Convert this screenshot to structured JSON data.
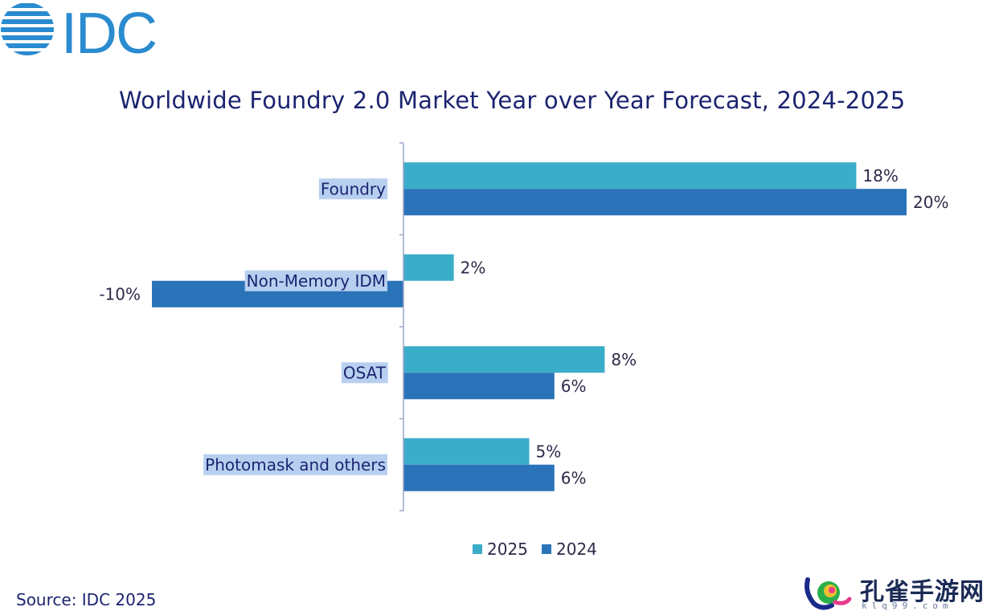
{
  "logo": {
    "text": "IDC",
    "color": "#2a8bd0"
  },
  "chart_data": {
    "type": "bar",
    "orientation": "horizontal",
    "title": "Worldwide Foundry 2.0 Market Year over Year Forecast, 2024-2025",
    "categories": [
      "Foundry",
      "Non-Memory IDM",
      "OSAT",
      "Photomask and others"
    ],
    "series": [
      {
        "name": "2025",
        "color": "#3aadc9",
        "values": [
          18,
          2,
          8,
          5
        ],
        "labels": [
          "18%",
          "2%",
          "8%",
          "5%"
        ]
      },
      {
        "name": "2024",
        "color": "#2a73b8",
        "values": [
          20,
          -10,
          6,
          6
        ],
        "labels": [
          "20%",
          "-10%",
          "6%",
          "6%"
        ]
      }
    ],
    "xlim": [
      -10,
      20
    ],
    "grid": false,
    "legend_position": "bottom"
  },
  "source": "Source: IDC 2025",
  "watermark": {
    "text": "孔雀手游网",
    "sub": "klq99.com"
  }
}
